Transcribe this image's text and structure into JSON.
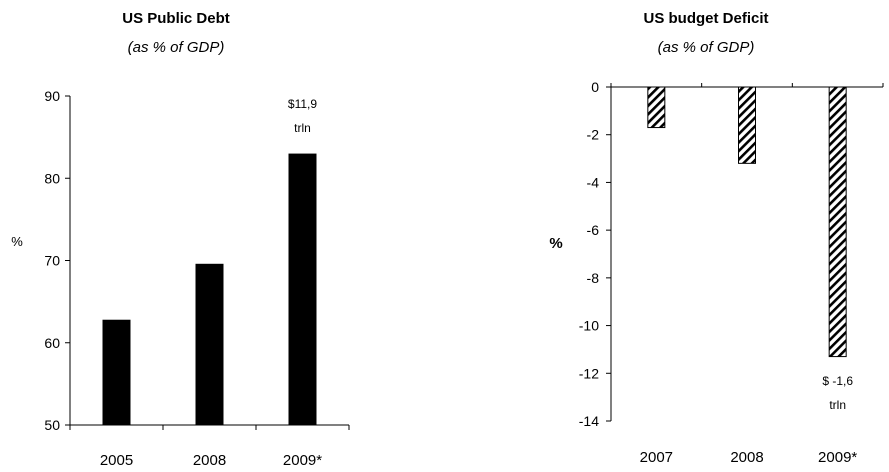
{
  "chart_data": [
    {
      "type": "bar",
      "title": "US Public Debt",
      "subtitle": "(as % of GDP)",
      "ylabel": "%",
      "categories": [
        "2005",
        "2008",
        "2009*"
      ],
      "values": [
        62.8,
        69.6,
        83
      ],
      "ylim": [
        50,
        90
      ],
      "yticks": [
        50,
        60,
        70,
        80,
        90
      ],
      "bar_color": "#000000",
      "annotation": {
        "category": "2009*",
        "lines": [
          "$11,9",
          "trln"
        ]
      }
    },
    {
      "type": "bar",
      "title": "US budget Deficit",
      "subtitle": "(as % of GDP)",
      "ylabel": "%",
      "categories": [
        "2007",
        "2008",
        "2009*"
      ],
      "values": [
        -1.7,
        -3.2,
        -11.3
      ],
      "ylim": [
        -14,
        0
      ],
      "yticks": [
        0,
        -2,
        -4,
        -6,
        -8,
        -10,
        -12,
        -14
      ],
      "bar_pattern": "diagonal-hatch",
      "annotation": {
        "category": "2009*",
        "lines": [
          "$ -1,6",
          "trln"
        ]
      }
    }
  ]
}
